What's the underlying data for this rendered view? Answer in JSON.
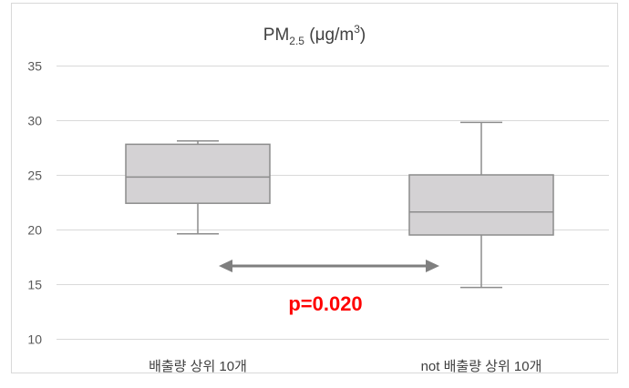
{
  "chart_data": {
    "type": "box",
    "title_parts": {
      "main": "PM",
      "sub": "2.5",
      "unit_open": " (μg/m",
      "sup": "3",
      "unit_close": ")"
    },
    "categories": [
      "배출량 상위 10개",
      "not 배출량 상위 10개"
    ],
    "boxes": [
      {
        "min": 19.6,
        "q1": 22.4,
        "median": 24.8,
        "q3": 27.8,
        "max": 28.1
      },
      {
        "min": 14.7,
        "q1": 19.5,
        "median": 21.6,
        "q3": 25.0,
        "max": 29.8
      }
    ],
    "ylim": [
      10,
      35
    ],
    "yticks": [
      "10",
      "15",
      "20",
      "25",
      "30",
      "35"
    ],
    "grid": true,
    "annotation": {
      "text": "p=0.020",
      "color": "#ff0000"
    }
  },
  "colors": {
    "box_fill": "#d4d2d4",
    "box_stroke": "#8c8c8c",
    "grid": "#d9d9d9",
    "frame": "#d9d9d9",
    "arrow": "#7f7f7f"
  }
}
